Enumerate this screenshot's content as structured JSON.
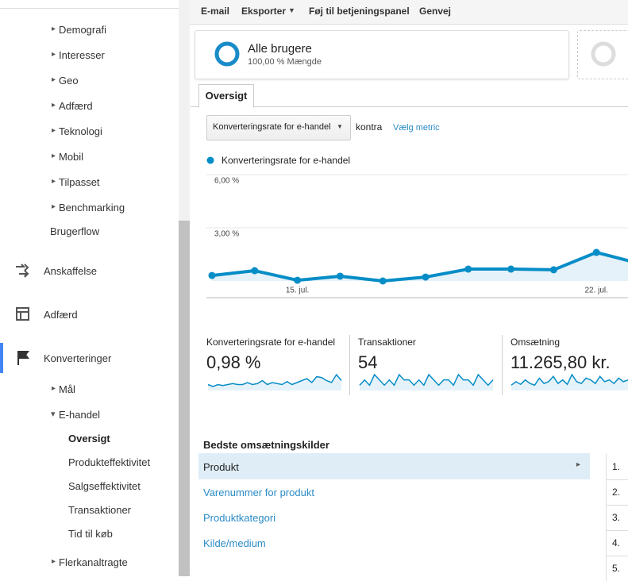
{
  "toolbar": {
    "email": "E-mail",
    "export": "Eksporter",
    "dashboard": "Føj til betjeningspanel",
    "shortcut": "Genvej"
  },
  "sidebar": {
    "audience_items": [
      "Demografi",
      "Interesser",
      "Geo",
      "Adfærd",
      "Teknologi",
      "Mobil",
      "Tilpasset",
      "Benchmarking"
    ],
    "users_flow": "Brugerflow",
    "acquisition": "Anskaffelse",
    "behavior": "Adfærd",
    "conversions": "Konverteringer",
    "goals": "Mål",
    "ecommerce": "E-handel",
    "ecommerce_items": [
      "Oversigt",
      "Produkteffektivitet",
      "Salgseffektivitet",
      "Transaktioner",
      "Tid til køb"
    ],
    "multichannel": "Flerkanaltragte"
  },
  "segment": {
    "name": "Alle brugere",
    "share": "100,00 % Mængde"
  },
  "tab": "Oversigt",
  "metric_select": "Konverteringsrate for e-handel",
  "versus": "kontra",
  "choose_metric": "Vælg metric",
  "chart": {
    "type": "line",
    "categories": [
      null,
      null,
      "15. jul.",
      null,
      null,
      null,
      null,
      null,
      null,
      "22. jul.",
      null
    ],
    "series": [
      {
        "name": "Konverteringsrate for e-handel",
        "color": "#058dc7",
        "values": [
          0.31,
          0.58,
          0.04,
          0.27,
          0,
          0.22,
          0.67,
          0.67,
          0.63,
          1.61,
          0.99
        ]
      }
    ],
    "ylim": [
      0,
      6
    ],
    "yticks": [
      {
        "value": 3,
        "label": "3,00 %"
      },
      {
        "value": 6,
        "label": "6,00 %"
      }
    ],
    "grid": true
  },
  "scorecards": [
    {
      "label": "Konverteringsrate for e-handel",
      "value": "0,98 %",
      "spark": [
        0.3,
        0.2,
        0.3,
        0.25,
        0.3,
        0.35,
        0.3,
        0.3,
        0.4,
        0.3,
        0.35,
        0.5,
        0.3,
        0.4,
        0.35,
        0.3,
        0.45,
        0.3,
        0.4,
        0.5,
        0.6,
        0.4,
        0.7,
        0.65,
        0.5,
        0.4,
        0.8,
        0.5
      ]
    },
    {
      "label": "Transaktioner",
      "value": "54",
      "spark": [
        1,
        2,
        1,
        3,
        2,
        1,
        2,
        1,
        3,
        2,
        2,
        1,
        2,
        1,
        3,
        2,
        1,
        2,
        2,
        1,
        3,
        2,
        2,
        1,
        3,
        2,
        1,
        2
      ]
    },
    {
      "label": "Omsætning",
      "value": "11.265,80 kr.",
      "spark": [
        300,
        500,
        350,
        600,
        400,
        300,
        700,
        400,
        500,
        800,
        400,
        600,
        350,
        900,
        500,
        400,
        700,
        600,
        400,
        800,
        500,
        600,
        400,
        700,
        500,
        600
      ]
    }
  ],
  "sources": {
    "title": "Bedste omsætningskilder",
    "items": [
      "Produkt",
      "Varenummer for produkt",
      "Produktkategori",
      "Kilde/medium"
    ]
  },
  "ranks": [
    "1.",
    "2.",
    "3.",
    "4.",
    "5."
  ]
}
